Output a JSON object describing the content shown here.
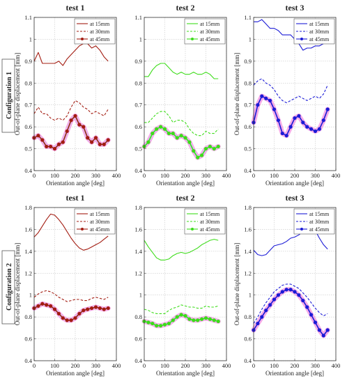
{
  "figure": {
    "row_labels": [
      "Configuration 1",
      "Configuration 2"
    ]
  },
  "colors": {
    "test 1": "#a31d12",
    "test 2": "#3ddc1a",
    "test 3": "#1b1bd6",
    "highlight": "#f28fe0",
    "highlight2": "#9ff2ff"
  },
  "chart_data": [
    {
      "type": "line",
      "title": "test 1",
      "row": 0,
      "col": 0,
      "xlabel": "Orientation angle [deg]",
      "ylabel": "Out-of-plane displacement [mm]",
      "xlim": [
        0,
        400
      ],
      "ylim": [
        0.4,
        1.1
      ],
      "xticks": [
        0,
        100,
        200,
        300,
        400
      ],
      "yticks": [
        0.4,
        0.5,
        0.6,
        0.7,
        0.8,
        0.9,
        1.0,
        1.1
      ],
      "grid": true,
      "legend": "top-right",
      "color": "#a31d12",
      "x": [
        0,
        20,
        40,
        60,
        80,
        100,
        120,
        140,
        160,
        180,
        200,
        220,
        240,
        260,
        280,
        300,
        320,
        340,
        360
      ],
      "series": [
        {
          "name": "at 15mm",
          "style": "solid",
          "values": [
            0.9,
            0.94,
            0.89,
            0.89,
            0.89,
            0.89,
            0.9,
            0.88,
            0.91,
            0.93,
            0.95,
            0.97,
            0.98,
            0.98,
            0.96,
            0.97,
            0.95,
            0.92,
            0.9
          ]
        },
        {
          "name": "at 30mm",
          "style": "dashed",
          "values": [
            0.66,
            0.69,
            0.66,
            0.66,
            0.64,
            0.63,
            0.64,
            0.63,
            0.65,
            0.69,
            0.72,
            0.71,
            0.69,
            0.68,
            0.66,
            0.67,
            0.66,
            0.65,
            0.68
          ]
        },
        {
          "name": "at 45mm",
          "style": "marker",
          "values": [
            0.55,
            0.56,
            0.54,
            0.51,
            0.51,
            0.5,
            0.52,
            0.53,
            0.58,
            0.63,
            0.65,
            0.61,
            0.6,
            0.55,
            0.53,
            0.55,
            0.52,
            0.52,
            0.54
          ]
        }
      ]
    },
    {
      "type": "line",
      "title": "test 2",
      "row": 0,
      "col": 1,
      "xlabel": "Orientation angle [deg]",
      "ylabel": "",
      "xlim": [
        0,
        400
      ],
      "ylim": [
        0.4,
        1.1
      ],
      "xticks": [
        0,
        100,
        200,
        300,
        400
      ],
      "yticks": [
        0.4,
        0.5,
        0.6,
        0.7,
        0.8,
        0.9,
        1.0,
        1.1
      ],
      "grid": true,
      "legend": "top-right",
      "color": "#3ddc1a",
      "x": [
        0,
        20,
        40,
        60,
        80,
        100,
        120,
        140,
        160,
        180,
        200,
        220,
        240,
        260,
        280,
        300,
        320,
        340,
        360
      ],
      "series": [
        {
          "name": "at 15mm",
          "style": "solid",
          "values": [
            0.83,
            0.83,
            0.86,
            0.88,
            0.89,
            0.89,
            0.87,
            0.85,
            0.84,
            0.85,
            0.84,
            0.84,
            0.85,
            0.84,
            0.84,
            0.85,
            0.84,
            0.82,
            0.82
          ]
        },
        {
          "name": "at 30mm",
          "style": "dashed",
          "values": [
            0.62,
            0.62,
            0.64,
            0.66,
            0.67,
            0.67,
            0.65,
            0.62,
            0.63,
            0.63,
            0.62,
            0.59,
            0.57,
            0.56,
            0.56,
            0.58,
            0.57,
            0.57,
            0.59
          ]
        },
        {
          "name": "at 45mm",
          "style": "marker",
          "values": [
            0.51,
            0.53,
            0.57,
            0.59,
            0.6,
            0.59,
            0.57,
            0.57,
            0.55,
            0.56,
            0.55,
            0.53,
            0.49,
            0.46,
            0.47,
            0.5,
            0.51,
            0.5,
            0.51
          ]
        }
      ]
    },
    {
      "type": "line",
      "title": "test 3",
      "row": 0,
      "col": 2,
      "xlabel": "Orientation angle [deg]",
      "ylabel": "Out-of-plane displacement [mm]",
      "xlim": [
        0,
        400
      ],
      "ylim": [
        0.4,
        1.1
      ],
      "xticks": [
        0,
        100,
        200,
        300,
        400
      ],
      "yticks": [
        0.4,
        0.5,
        0.6,
        0.7,
        0.8,
        0.9,
        1.0,
        1.1
      ],
      "grid": true,
      "legend": "top-right",
      "color": "#1b1bd6",
      "x": [
        0,
        20,
        40,
        60,
        80,
        100,
        120,
        140,
        160,
        180,
        200,
        220,
        240,
        260,
        280,
        300,
        320,
        340,
        360
      ],
      "series": [
        {
          "name": "at 15mm",
          "style": "solid",
          "values": [
            1.08,
            1.08,
            1.09,
            1.07,
            1.05,
            1.05,
            1.04,
            1.02,
            1.02,
            1.02,
            1.0,
            0.98,
            0.95,
            0.96,
            0.96,
            0.97,
            0.97,
            0.98,
            0.99
          ]
        },
        {
          "name": "at 30mm",
          "style": "dashed",
          "values": [
            0.79,
            0.81,
            0.82,
            0.8,
            0.79,
            0.77,
            0.74,
            0.72,
            0.71,
            0.72,
            0.73,
            0.74,
            0.73,
            0.72,
            0.73,
            0.74,
            0.73,
            0.75,
            0.79
          ]
        },
        {
          "name": "at 45mm",
          "style": "marker",
          "values": [
            0.62,
            0.7,
            0.74,
            0.73,
            0.72,
            0.68,
            0.63,
            0.57,
            0.56,
            0.6,
            0.64,
            0.65,
            0.62,
            0.6,
            0.59,
            0.58,
            0.59,
            0.63,
            0.68
          ]
        }
      ]
    },
    {
      "type": "line",
      "title": "test 1",
      "row": 1,
      "col": 0,
      "xlabel": "Orientation angle [deg]",
      "ylabel": "Out-of-plane displacement [mm]",
      "xlim": [
        0,
        400
      ],
      "ylim": [
        0.4,
        1.8
      ],
      "xticks": [
        0,
        100,
        200,
        300,
        400
      ],
      "yticks": [
        0.4,
        0.6,
        0.8,
        1.0,
        1.2,
        1.4,
        1.6,
        1.8
      ],
      "grid": true,
      "legend": "top-right",
      "color": "#a31d12",
      "x": [
        0,
        20,
        40,
        60,
        80,
        100,
        120,
        140,
        160,
        180,
        200,
        220,
        240,
        260,
        280,
        300,
        320,
        340,
        360
      ],
      "series": [
        {
          "name": "at 15mm",
          "style": "solid",
          "values": [
            1.53,
            1.57,
            1.63,
            1.69,
            1.74,
            1.73,
            1.69,
            1.64,
            1.58,
            1.52,
            1.47,
            1.43,
            1.41,
            1.42,
            1.44,
            1.46,
            1.48,
            1.51,
            1.54
          ]
        },
        {
          "name": "at 30mm",
          "style": "dashed",
          "values": [
            0.98,
            1.01,
            1.03,
            1.04,
            1.03,
            1.01,
            0.98,
            0.96,
            0.94,
            0.95,
            0.96,
            0.96,
            0.95,
            0.95,
            0.97,
            0.98,
            0.97,
            0.96,
            0.98
          ]
        },
        {
          "name": "at 45mm",
          "style": "marker",
          "values": [
            0.88,
            0.9,
            0.92,
            0.91,
            0.9,
            0.87,
            0.83,
            0.79,
            0.77,
            0.77,
            0.79,
            0.83,
            0.86,
            0.87,
            0.88,
            0.89,
            0.88,
            0.87,
            0.88
          ]
        }
      ]
    },
    {
      "type": "line",
      "title": "test 2",
      "row": 1,
      "col": 1,
      "xlabel": "Orientation angle [deg]",
      "ylabel": "",
      "xlim": [
        0,
        400
      ],
      "ylim": [
        0.4,
        1.8
      ],
      "xticks": [
        0,
        100,
        200,
        300,
        400
      ],
      "yticks": [
        0.4,
        0.6,
        0.8,
        1.0,
        1.2,
        1.4,
        1.6,
        1.8
      ],
      "grid": true,
      "legend": "top-right",
      "color": "#3ddc1a",
      "x": [
        0,
        20,
        40,
        60,
        80,
        100,
        120,
        140,
        160,
        180,
        200,
        220,
        240,
        260,
        280,
        300,
        320,
        340,
        360
      ],
      "series": [
        {
          "name": "at 15mm",
          "style": "solid",
          "values": [
            1.5,
            1.44,
            1.39,
            1.34,
            1.32,
            1.32,
            1.33,
            1.36,
            1.38,
            1.39,
            1.38,
            1.39,
            1.41,
            1.43,
            1.46,
            1.48,
            1.5,
            1.51,
            1.5
          ]
        },
        {
          "name": "at 30mm",
          "style": "dashed",
          "values": [
            0.87,
            0.86,
            0.84,
            0.83,
            0.83,
            0.83,
            0.86,
            0.88,
            0.89,
            0.91,
            0.9,
            0.89,
            0.89,
            0.88,
            0.88,
            0.9,
            0.89,
            0.89,
            0.9
          ]
        },
        {
          "name": "at 45mm",
          "style": "marker",
          "values": [
            0.76,
            0.75,
            0.74,
            0.72,
            0.72,
            0.73,
            0.74,
            0.77,
            0.8,
            0.82,
            0.81,
            0.78,
            0.77,
            0.77,
            0.78,
            0.79,
            0.78,
            0.77,
            0.76
          ]
        }
      ]
    },
    {
      "type": "line",
      "title": "test 3",
      "row": 1,
      "col": 2,
      "xlabel": "Orientation angle [deg]",
      "ylabel": "Out-of-plane displacement [mm]",
      "xlim": [
        0,
        400
      ],
      "ylim": [
        0.4,
        1.8
      ],
      "xticks": [
        0,
        100,
        200,
        300,
        400
      ],
      "yticks": [
        0.4,
        0.6,
        0.8,
        1.0,
        1.2,
        1.4,
        1.6,
        1.8
      ],
      "grid": true,
      "legend": "top-right",
      "color": "#1b1bd6",
      "x": [
        0,
        20,
        40,
        60,
        80,
        100,
        120,
        140,
        160,
        180,
        200,
        220,
        240,
        260,
        280,
        300,
        320,
        340,
        360
      ],
      "series": [
        {
          "name": "at 15mm",
          "style": "solid",
          "values": [
            1.41,
            1.37,
            1.36,
            1.37,
            1.41,
            1.45,
            1.46,
            1.47,
            1.49,
            1.52,
            1.53,
            1.55,
            1.58,
            1.6,
            1.62,
            1.59,
            1.52,
            1.46,
            1.42
          ]
        },
        {
          "name": "at 30mm",
          "style": "dashed",
          "values": [
            0.74,
            0.8,
            0.87,
            0.93,
            0.98,
            1.03,
            1.06,
            1.09,
            1.1,
            1.1,
            1.08,
            1.06,
            1.02,
            0.98,
            0.93,
            0.88,
            0.84,
            0.81,
            0.83
          ]
        },
        {
          "name": "at 45mm",
          "style": "marker",
          "values": [
            0.68,
            0.74,
            0.8,
            0.86,
            0.91,
            0.96,
            1.0,
            1.03,
            1.05,
            1.05,
            1.03,
            1.0,
            0.95,
            0.89,
            0.82,
            0.75,
            0.68,
            0.63,
            0.68
          ]
        }
      ]
    }
  ]
}
